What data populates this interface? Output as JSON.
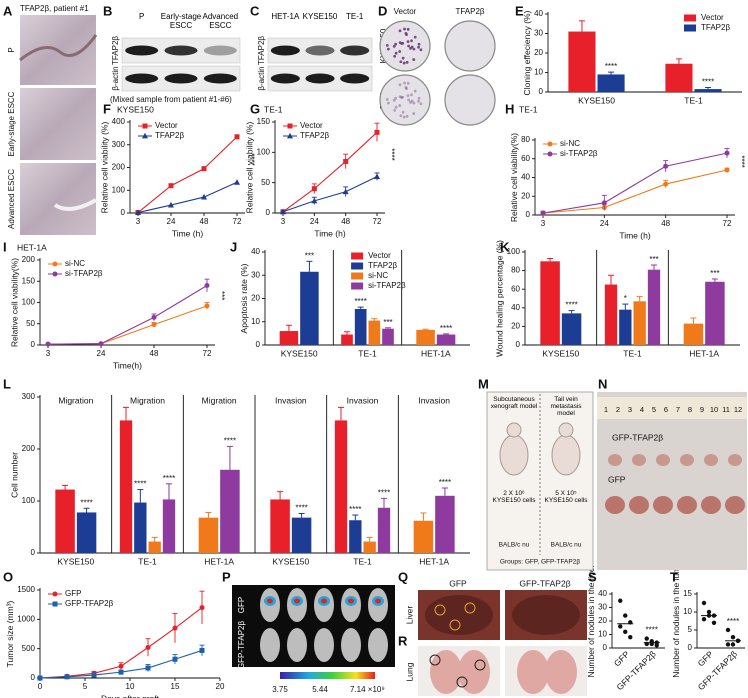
{
  "chart_data": [
    {
      "panel": "E",
      "type": "bar",
      "ylabel": "Cloning effeciency (%)",
      "categories": [
        "KYSE150",
        "TE-1"
      ],
      "series": [
        {
          "name": "Vector",
          "color": "#e8202a",
          "values": [
            31,
            14.5
          ],
          "errors": [
            5.5,
            2.5
          ],
          "stars": [
            null,
            null
          ]
        },
        {
          "name": "TFAP2β",
          "color": "#1d3c94",
          "values": [
            9,
            1.5
          ],
          "errors": [
            1.2,
            0.8
          ],
          "stars": [
            "****",
            "****"
          ]
        }
      ],
      "ylim": [
        0,
        40
      ],
      "yticks": [
        0,
        10,
        20,
        30,
        40
      ],
      "legend": "upper right"
    },
    {
      "panel": "F",
      "type": "line",
      "title": "KYSE150",
      "ylabel": "Relative cell viability (%)",
      "xlabel": "Time (h)",
      "categories": [
        3,
        24,
        48,
        72
      ],
      "series": [
        {
          "name": "Vector",
          "color": "#e8202a",
          "marker": "square",
          "values": [
            2,
            120,
            195,
            335
          ]
        },
        {
          "name": "TFAP2β",
          "color": "#1d3c94",
          "marker": "triangle",
          "values": [
            2,
            35,
            70,
            135
          ]
        }
      ],
      "ylim": [
        0,
        400
      ],
      "yticks": [
        0,
        100,
        200,
        300,
        400
      ],
      "legend": "upper left",
      "annotation": "****"
    },
    {
      "panel": "G",
      "type": "line",
      "title": "TE-1",
      "ylabel": "Relative cell viability (%)",
      "xlabel": "Time (h)",
      "categories": [
        3,
        24,
        48,
        72
      ],
      "series": [
        {
          "name": "Vector",
          "color": "#e8202a",
          "marker": "square",
          "values": [
            2,
            40,
            85,
            133
          ],
          "errors": [
            1,
            8,
            12,
            15
          ]
        },
        {
          "name": "TFAP2β",
          "color": "#1d3c94",
          "marker": "triangle",
          "values": [
            2,
            20,
            35,
            60
          ],
          "errors": [
            1,
            6,
            8,
            6
          ]
        }
      ],
      "ylim": [
        0,
        150
      ],
      "yticks": [
        0,
        50,
        100,
        150
      ],
      "legend": "upper left",
      "annotation": "****"
    },
    {
      "panel": "H",
      "type": "line",
      "title": "TE-1",
      "ylabel": "Relative cell viability(%)",
      "xlabel": "Time (h)",
      "categories": [
        3,
        24,
        48,
        72
      ],
      "series": [
        {
          "name": "si-NC",
          "color": "#f07a1a",
          "marker": "circle",
          "values": [
            2,
            8,
            33,
            48
          ],
          "errors": [
            2,
            3,
            4,
            2
          ]
        },
        {
          "name": "si-TFAP2β",
          "color": "#8e3a9e",
          "marker": "circle",
          "values": [
            2,
            13,
            52,
            66
          ],
          "errors": [
            2,
            8,
            6,
            5
          ]
        }
      ],
      "ylim": [
        0,
        80
      ],
      "yticks": [
        0,
        20,
        40,
        60,
        80
      ],
      "legend": "upper left",
      "annotation": "****"
    },
    {
      "panel": "I",
      "type": "line",
      "title": "HET-1A",
      "ylabel": "Relative cell viability(%)",
      "xlabel": "Time(h)",
      "categories": [
        3,
        24,
        48,
        72
      ],
      "series": [
        {
          "name": "si-NC",
          "color": "#f07a1a",
          "marker": "circle",
          "values": [
            2,
            3,
            48,
            92
          ],
          "errors": [
            1,
            1,
            5,
            8
          ]
        },
        {
          "name": "si-TFAP2β",
          "color": "#8e3a9e",
          "marker": "circle",
          "values": [
            2,
            3,
            65,
            140
          ],
          "errors": [
            1,
            1,
            8,
            15
          ]
        }
      ],
      "ylim": [
        0,
        200
      ],
      "yticks": [
        0,
        50,
        100,
        150,
        200
      ],
      "legend": "upper left",
      "annotation": "***"
    },
    {
      "panel": "J",
      "type": "bar",
      "ylabel": "Apoptosis rate (%)",
      "categories": [
        "KYSE150",
        "TE-1",
        "HET-1A"
      ],
      "dividers": true,
      "series": [
        {
          "name": "Vector",
          "color": "#e8202a",
          "values": [
            6,
            4.5,
            null
          ],
          "errors": [
            2.5,
            1.2,
            null
          ],
          "stars": [
            null,
            null,
            null
          ]
        },
        {
          "name": "TFAP2β",
          "color": "#1d3c94",
          "values": [
            31.5,
            15.5,
            null
          ],
          "errors": [
            4.5,
            0.8,
            null
          ],
          "stars": [
            "***",
            "****",
            null
          ]
        },
        {
          "name": "si-NC",
          "color": "#f07a1a",
          "values": [
            null,
            10.5,
            6.5
          ],
          "errors": [
            null,
            0.8,
            0.3
          ],
          "stars": [
            null,
            null,
            null
          ]
        },
        {
          "name": "si-TFAP2β",
          "color": "#8e3a9e",
          "values": [
            null,
            7,
            4.5
          ],
          "errors": [
            null,
            0.4,
            0.3
          ],
          "stars": [
            null,
            "***",
            "****"
          ]
        }
      ],
      "ylim": [
        0,
        40
      ],
      "yticks": [
        0,
        10,
        20,
        30,
        40
      ],
      "legend": "upper center"
    },
    {
      "panel": "K",
      "type": "bar",
      "ylabel": "Wound healing percentage (%)",
      "categories": [
        "KYSE150",
        "TE-1",
        "HET-1A"
      ],
      "dividers": true,
      "series": [
        {
          "name": "Vector",
          "color": "#e8202a",
          "values": [
            90,
            65,
            null
          ],
          "errors": [
            3,
            10,
            null
          ],
          "stars": [
            null,
            null,
            null
          ]
        },
        {
          "name": "TFAP2β",
          "color": "#1d3c94",
          "values": [
            34,
            38,
            null
          ],
          "errors": [
            3,
            6,
            null
          ],
          "stars": [
            "****",
            "*",
            null
          ]
        },
        {
          "name": "si-NC",
          "color": "#f07a1a",
          "values": [
            null,
            47,
            23
          ],
          "errors": [
            null,
            5,
            6
          ],
          "stars": [
            null,
            null,
            null
          ]
        },
        {
          "name": "si-TFAP2β",
          "color": "#8e3a9e",
          "values": [
            null,
            81,
            68
          ],
          "errors": [
            null,
            5,
            3
          ],
          "stars": [
            null,
            "***",
            "***"
          ]
        }
      ],
      "ylim": [
        0,
        100
      ],
      "yticks": [
        0,
        20,
        40,
        60,
        80,
        100
      ]
    },
    {
      "panel": "L",
      "type": "bar",
      "ylabel": "Cell number",
      "categories": [
        "KYSE150",
        "TE-1",
        "HET-1A",
        "KYSE150",
        "TE-1",
        "HET-1A"
      ],
      "groups": [
        "Migration",
        "Migration",
        "Migration",
        "Invasion",
        "Invasion",
        "Invasion"
      ],
      "dividers": true,
      "series": [
        {
          "name": "Vector",
          "color": "#e8202a",
          "values": [
            122,
            255,
            null,
            103,
            255,
            null
          ],
          "errors": [
            8,
            25,
            null,
            15,
            25,
            null
          ],
          "stars": [
            null,
            null,
            null,
            null,
            null,
            null
          ]
        },
        {
          "name": "TFAP2β",
          "color": "#1d3c94",
          "values": [
            78,
            97,
            null,
            68,
            63,
            null
          ],
          "errors": [
            8,
            25,
            null,
            8,
            10,
            null
          ],
          "stars": [
            "****",
            "****",
            null,
            "****",
            "****",
            null
          ]
        },
        {
          "name": "si-NC",
          "color": "#f07a1a",
          "values": [
            null,
            22,
            68,
            null,
            22,
            62
          ],
          "errors": [
            null,
            8,
            10,
            null,
            8,
            15
          ],
          "stars": [
            null,
            null,
            null,
            null,
            null,
            null
          ]
        },
        {
          "name": "si-TFAP2β",
          "color": "#8e3a9e",
          "values": [
            null,
            103,
            160,
            null,
            87,
            110
          ],
          "errors": [
            null,
            30,
            45,
            null,
            18,
            15
          ],
          "stars": [
            null,
            "****",
            "****",
            null,
            "****",
            "****"
          ]
        }
      ],
      "ylim": [
        0,
        300
      ],
      "yticks": [
        0,
        100,
        200,
        300
      ]
    },
    {
      "panel": "O",
      "type": "line",
      "ylabel": "Tumor size (mm³)",
      "xlabel": "Days after graft",
      "x": [
        0,
        3,
        6,
        9,
        12,
        15,
        18
      ],
      "series": [
        {
          "name": "GFP",
          "color": "#e8202a",
          "marker": "circle",
          "values": [
            0,
            30,
            80,
            200,
            520,
            850,
            1200
          ],
          "errors": [
            0,
            10,
            30,
            60,
            150,
            250,
            280
          ]
        },
        {
          "name": "GFP-TFAP2β",
          "color": "#1d5fb0",
          "marker": "square",
          "values": [
            0,
            20,
            50,
            100,
            170,
            320,
            470
          ],
          "errors": [
            0,
            8,
            20,
            30,
            60,
            80,
            90
          ]
        }
      ],
      "xlim": [
        0,
        20
      ],
      "xticks": [
        0,
        5,
        10,
        15,
        20
      ],
      "ylim": [
        0,
        1500
      ],
      "yticks": [
        0,
        500,
        1000,
        1500
      ],
      "legend": "upper left"
    },
    {
      "panel": "S",
      "type": "strip",
      "ylabel": "Number of nodules in the liver",
      "categories": [
        "GFP",
        "GFP-TFAP2β"
      ],
      "points": [
        [
          35,
          24,
          19,
          16,
          12,
          8
        ],
        [
          7,
          5,
          4,
          3,
          3,
          2
        ]
      ],
      "means": [
        18,
        4
      ],
      "ylim": [
        0,
        40
      ],
      "yticks": [
        0,
        10,
        20,
        30,
        40
      ],
      "annotation": "****"
    },
    {
      "panel": "T",
      "type": "strip",
      "ylabel": "Number of nodules in the lung",
      "categories": [
        "GFP",
        "GFP-TFAP2β"
      ],
      "points": [
        [
          12.5,
          10,
          9,
          8,
          9,
          7
        ],
        [
          5,
          3,
          2,
          1,
          1,
          2
        ]
      ],
      "means": [
        9,
        2
      ],
      "ylim": [
        0,
        15
      ],
      "yticks": [
        0,
        5,
        10,
        15
      ],
      "annotation": "****"
    }
  ],
  "figures": {
    "A": {
      "label": "A",
      "title": "TFAP2β, patient #1",
      "rows": [
        "P",
        "Early-stage ESCC",
        "Advanced ESCC"
      ]
    },
    "B": {
      "label": "B",
      "lanes": [
        "P",
        "Early-stage ESCC",
        "Advanced ESCC"
      ],
      "proteins": [
        "TFAP2β",
        "β-actin"
      ],
      "note": "(Mixed sample from patient #1-#6)"
    },
    "C": {
      "label": "C",
      "lanes": [
        "HET-1A",
        "KYSE150",
        "TE-1"
      ],
      "proteins": [
        "TFAP2β",
        "β-actin"
      ]
    },
    "D": {
      "label": "D",
      "cols": [
        "Vector",
        "TFAP2β"
      ],
      "rows": [
        "KYSE150",
        "TE-1"
      ]
    },
    "M": {
      "label": "M",
      "models": [
        {
          "title": "Subcutaneous xenograft model",
          "dose": "2 X 10⁶ KYSE150 cells",
          "mouse": "BALB/c nu"
        },
        {
          "title": "Tail vein metastasis model",
          "dose": "5 X 10⁵ KYSE150 cells",
          "mouse": "BALB/c nu"
        }
      ],
      "groups": "Groups: GFP, GFP-TFAP2β"
    },
    "N": {
      "label": "N",
      "ruler": [
        1,
        2,
        3,
        4,
        5,
        6,
        7,
        8,
        9,
        10,
        11,
        12
      ],
      "rows": [
        "GFP-TFAP2β",
        "GFP"
      ]
    },
    "P": {
      "label": "P",
      "rows": [
        "GFP",
        "GFP-TFAP2β"
      ],
      "scale": [
        "3.75",
        "5.44",
        "7.14 ×10⁹"
      ]
    },
    "Q": {
      "label": "Q",
      "cols": [
        "GFP",
        "GFP-TFAP2β"
      ],
      "organ": "Liver"
    },
    "R": {
      "label": "R",
      "organ": "Lung"
    }
  }
}
